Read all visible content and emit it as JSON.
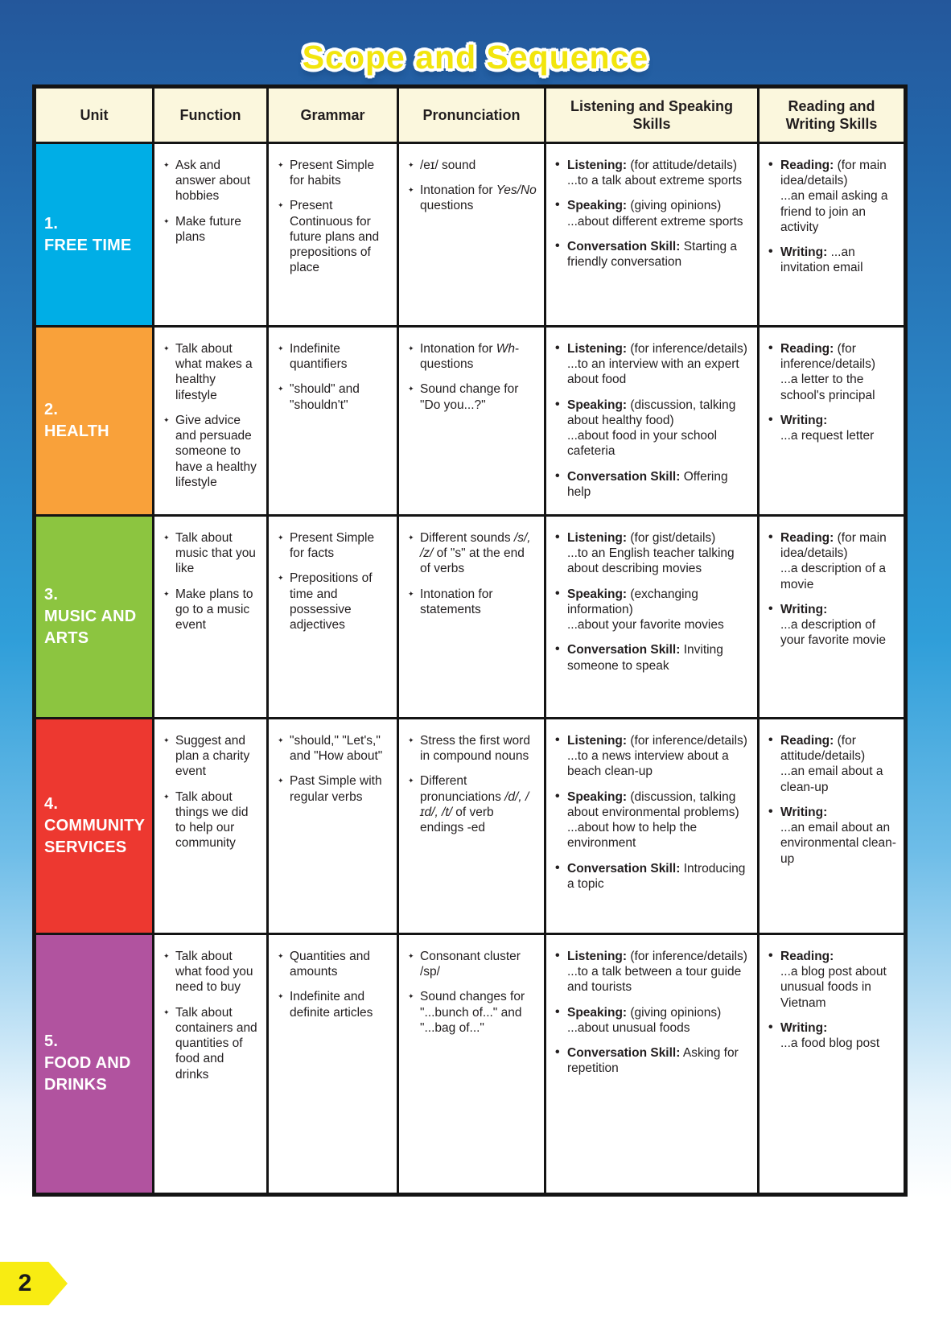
{
  "page": {
    "title": "Scope and Sequence",
    "page_number": "2",
    "colors": {
      "title_yellow": "#f2e50d",
      "header_cream": "#fbf7dd",
      "table_border": "#141414",
      "background_blue_top": "#24579b",
      "background_blue_mid": "#2f9ed9",
      "page_tag_yellow": "#f8ec12"
    }
  },
  "table": {
    "headers": [
      "Unit",
      "Function",
      "Grammar",
      "Pronunciation",
      "Listening and Speaking Skills",
      "Reading and Writing Skills"
    ],
    "rows": [
      {
        "unit_number": "1.",
        "unit_name": "FREE TIME",
        "unit_color": "#00aee6",
        "function": [
          "Ask and answer about hobbies",
          "Make future plans"
        ],
        "grammar": [
          "Present Simple for habits",
          "Present Continuous for future plans and prepositions of place"
        ],
        "pronunciation": [
          "/eɪ/ sound",
          "Intonation for *Yes/No* questions"
        ],
        "listening_speaking": [
          {
            "label": "Listening:",
            "head": "(for attitude/details)",
            "lines": [
              "...to a talk about extreme sports"
            ]
          },
          {
            "label": "Speaking:",
            "head": "(giving opinions)",
            "lines": [
              "...about different extreme sports"
            ]
          },
          {
            "label": "Conversation Skill:",
            "head": "Starting a friendly conversation",
            "lines": []
          }
        ],
        "reading_writing": [
          {
            "label": "Reading:",
            "head": "(for main idea/details)",
            "lines": [
              "...an email asking a friend to join an activity"
            ]
          },
          {
            "label": "Writing:",
            "head": "...an invitation email",
            "lines": []
          }
        ]
      },
      {
        "unit_number": "2.",
        "unit_name": "HEALTH",
        "unit_color": "#f9a13a",
        "function": [
          "Talk about what makes a healthy lifestyle",
          "Give advice and persuade someone to have a healthy lifestyle"
        ],
        "grammar": [
          "Indefinite quantifiers",
          "\"should\" and \"shouldn't\""
        ],
        "pronunciation": [
          "Intonation for *Wh*-questions",
          "Sound change for \"Do you...?\""
        ],
        "listening_speaking": [
          {
            "label": "Listening:",
            "head": "(for inference/details)",
            "lines": [
              "...to an interview with an expert about food"
            ]
          },
          {
            "label": "Speaking:",
            "head": "(discussion, talking about healthy food)",
            "lines": [
              "...about food in your school cafeteria"
            ]
          },
          {
            "label": "Conversation Skill:",
            "head": "Offering help",
            "lines": []
          }
        ],
        "reading_writing": [
          {
            "label": "Reading:",
            "head": "(for inference/details)",
            "lines": [
              "...a letter to the school's principal"
            ]
          },
          {
            "label": "Writing:",
            "head": "",
            "lines": [
              "...a request letter"
            ]
          }
        ]
      },
      {
        "unit_number": "3.",
        "unit_name": "MUSIC AND ARTS",
        "unit_color": "#8cc540",
        "function": [
          "Talk about music that you like",
          "Make plans to go to a music event"
        ],
        "grammar": [
          "Present Simple for facts",
          "Prepositions of time and possessive adjectives"
        ],
        "pronunciation": [
          "Different sounds */s/, /z/* of \"s\" at the end of verbs",
          "Intonation for statements"
        ],
        "listening_speaking": [
          {
            "label": "Listening:",
            "head": "(for gist/details)",
            "lines": [
              "...to an English teacher talking about describing movies"
            ]
          },
          {
            "label": "Speaking:",
            "head": "(exchanging information)",
            "lines": [
              "...about your favorite movies"
            ]
          },
          {
            "label": "Conversation Skill:",
            "head": "Inviting someone to speak",
            "lines": []
          }
        ],
        "reading_writing": [
          {
            "label": "Reading:",
            "head": "(for main idea/details)",
            "lines": [
              "...a description of a movie"
            ]
          },
          {
            "label": "Writing:",
            "head": "",
            "lines": [
              "...a description of your favorite movie"
            ]
          }
        ]
      },
      {
        "unit_number": "4.",
        "unit_name": "COMMUNITY SERVICES",
        "unit_color": "#ed3830",
        "function": [
          "Suggest and plan a charity event",
          "Talk about things we did to help our community"
        ],
        "grammar": [
          "\"should,\" \"Let's,\" and \"How about\"",
          "Past Simple with regular verbs"
        ],
        "pronunciation": [
          "Stress the first word in compound nouns",
          "Different pronunciations */d/, /ɪd/, /t/* of verb endings -ed"
        ],
        "listening_speaking": [
          {
            "label": "Listening:",
            "head": "(for inference/details)",
            "lines": [
              "...to a news interview about a beach clean-up"
            ]
          },
          {
            "label": "Speaking:",
            "head": "(discussion, talking about environmental problems)",
            "lines": [
              "...about how to help the environment"
            ]
          },
          {
            "label": "Conversation Skill:",
            "head": "Introducing a topic",
            "lines": []
          }
        ],
        "reading_writing": [
          {
            "label": "Reading:",
            "head": "(for attitude/details)",
            "lines": [
              "...an email about a clean-up"
            ]
          },
          {
            "label": "Writing:",
            "head": "",
            "lines": [
              "...an email about an environmental clean-up"
            ]
          }
        ]
      },
      {
        "unit_number": "5.",
        "unit_name": "FOOD AND DRINKS",
        "unit_color": "#b1539f",
        "function": [
          "Talk about what food you need to buy",
          "Talk about containers and quantities of food and drinks"
        ],
        "grammar": [
          "Quantities and amounts",
          "Indefinite and definite articles"
        ],
        "pronunciation": [
          "Consonant cluster /sp/",
          "Sound changes for \"...bunch of...\" and \"...bag of...\""
        ],
        "listening_speaking": [
          {
            "label": "Listening:",
            "head": "(for inference/details)",
            "lines": [
              "...to a talk between a tour guide and tourists"
            ]
          },
          {
            "label": "Speaking:",
            "head": "(giving opinions)",
            "lines": [
              "...about unusual foods"
            ]
          },
          {
            "label": "Conversation Skill:",
            "head": "Asking for repetition",
            "lines": []
          }
        ],
        "reading_writing": [
          {
            "label": "Reading:",
            "head": "",
            "lines": [
              "...a blog post about unusual foods in Vietnam"
            ]
          },
          {
            "label": "Writing:",
            "head": "",
            "lines": [
              "...a food blog post"
            ]
          }
        ]
      }
    ]
  }
}
